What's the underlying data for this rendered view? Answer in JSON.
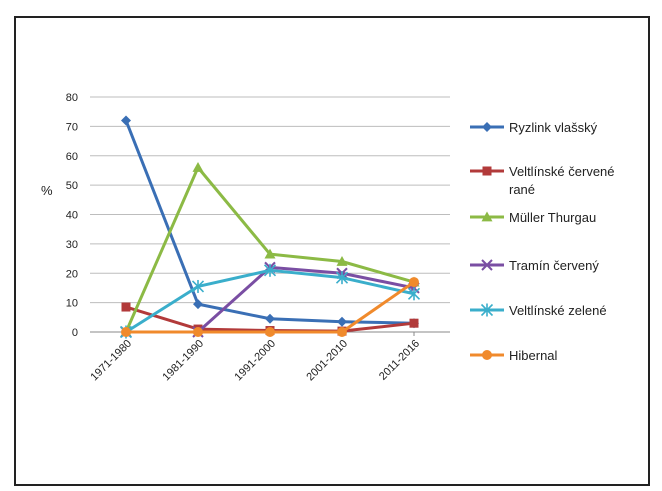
{
  "chart_data": {
    "type": "line",
    "title": "",
    "xlabel": "",
    "ylabel": "%",
    "ylim": [
      0,
      80
    ],
    "yticks": [
      0,
      10,
      20,
      30,
      40,
      50,
      60,
      70,
      80
    ],
    "grid": "horizontal",
    "legend_position": "right",
    "categories": [
      "1971-1980",
      "1981-1990",
      "1991-2000",
      "2001-2010",
      "2011-2016"
    ],
    "series": [
      {
        "name": "Ryzlink vlašský",
        "name_lines": [
          "Ryzlink vlašský"
        ],
        "color": "#3a6fb5",
        "marker": "diamond",
        "values": [
          72,
          9.5,
          4.5,
          3.5,
          3
        ]
      },
      {
        "name": "Veltlínské červené rané",
        "name_lines": [
          "Veltlínské červené",
          "rané"
        ],
        "color": "#b23a3a",
        "marker": "square",
        "values": [
          8.5,
          1,
          0.5,
          0.3,
          3
        ]
      },
      {
        "name": "Müller Thurgau",
        "name_lines": [
          "Müller Thurgau"
        ],
        "color": "#8cba45",
        "marker": "triangle",
        "values": [
          0,
          56,
          26.5,
          24,
          17
        ]
      },
      {
        "name": "Tramín červený",
        "name_lines": [
          "Tramín červený"
        ],
        "color": "#7a4ea3",
        "marker": "x",
        "values": [
          0,
          0,
          22,
          20,
          15
        ]
      },
      {
        "name": "Veltlínské zelené",
        "name_lines": [
          "Veltlínské zelené"
        ],
        "color": "#3aaecb",
        "marker": "star",
        "values": [
          0,
          15.5,
          21,
          18.5,
          13
        ]
      },
      {
        "name": "Hibernal",
        "name_lines": [
          "Hibernal"
        ],
        "color": "#f08a2c",
        "marker": "circle",
        "values": [
          0,
          0,
          0,
          0,
          17
        ]
      }
    ]
  }
}
